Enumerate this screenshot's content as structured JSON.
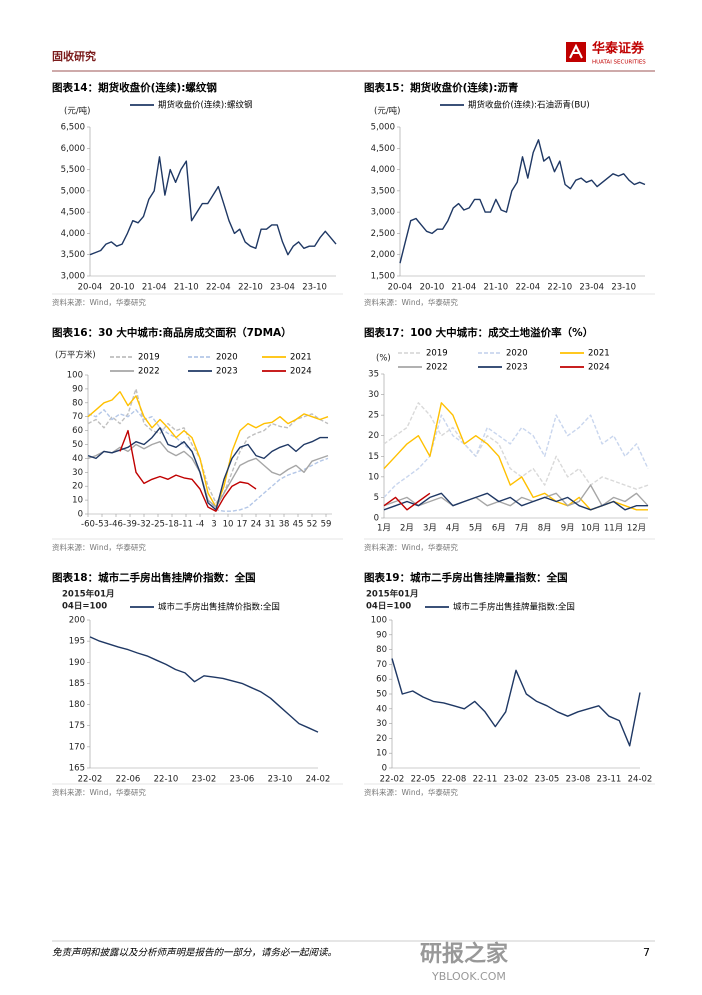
{
  "header": {
    "section": "固收研究",
    "logo_cn": "华泰证券",
    "logo_en": "HUATAI SECURITIES"
  },
  "chart_data": [
    {
      "type": "line",
      "title": "图表14：期货收盘价(连续):螺纹钢",
      "unit": "(元/吨)",
      "categories": [
        "20-04",
        null,
        null,
        null,
        null,
        null,
        "20-10",
        null,
        null,
        null,
        null,
        null,
        "21-04",
        null,
        null,
        null,
        null,
        null,
        "21-10",
        null,
        null,
        null,
        null,
        null,
        "22-04",
        null,
        null,
        null,
        null,
        null,
        "22-10",
        null,
        null,
        null,
        null,
        null,
        "23-04",
        null,
        null,
        null,
        null,
        null,
        "23-10",
        null,
        null,
        null,
        null
      ],
      "series": [
        {
          "name": "期货收盘价(连续):螺纹钢",
          "color": "#1f3864",
          "values": [
            3500,
            3550,
            3600,
            3750,
            3800,
            3700,
            3750,
            4000,
            4300,
            4250,
            4400,
            4800,
            5000,
            5800,
            4900,
            5500,
            5200,
            5500,
            5700,
            4300,
            4500,
            4700,
            4700,
            4900,
            5100,
            4700,
            4300,
            4000,
            4100,
            3800,
            3700,
            3650,
            4100,
            4100,
            4200,
            4200,
            3800,
            3500,
            3700,
            3800,
            3650,
            3700,
            3700,
            3900,
            4050,
            3900,
            3750
          ]
        }
      ],
      "ylim": [
        3000,
        6500
      ],
      "yticks": [
        {
          "value": 3000,
          "label": "3,000"
        },
        {
          "value": 3500,
          "label": "3,500"
        },
        {
          "value": 4000,
          "label": "4,000"
        },
        {
          "value": 4500,
          "label": "4,500"
        },
        {
          "value": 5000,
          "label": "5,000"
        },
        {
          "value": 5500,
          "label": "5,500"
        },
        {
          "value": 6000,
          "label": "6,000"
        },
        {
          "value": 6500,
          "label": "6,500"
        }
      ],
      "grid": false,
      "source": "资料来源：Wind，华泰研究"
    },
    {
      "type": "line",
      "title": "图表15：期货收盘价(连续):沥青",
      "unit": "(元/吨)",
      "categories": [
        "20-04",
        null,
        null,
        null,
        null,
        null,
        "20-10",
        null,
        null,
        null,
        null,
        null,
        "21-04",
        null,
        null,
        null,
        null,
        null,
        "21-10",
        null,
        null,
        null,
        null,
        null,
        "22-04",
        null,
        null,
        null,
        null,
        null,
        "22-10",
        null,
        null,
        null,
        null,
        null,
        "23-04",
        null,
        null,
        null,
        null,
        null,
        "23-10",
        null,
        null,
        null,
        null
      ],
      "series": [
        {
          "name": "期货收盘价(连续):石油沥青(BU)",
          "color": "#1f3864",
          "values": [
            1800,
            2300,
            2800,
            2850,
            2700,
            2550,
            2500,
            2600,
            2600,
            2800,
            3100,
            3200,
            3050,
            3100,
            3300,
            3300,
            3000,
            3000,
            3300,
            3050,
            3000,
            3500,
            3700,
            4300,
            3800,
            4400,
            4700,
            4200,
            4300,
            3950,
            4200,
            3650,
            3550,
            3750,
            3800,
            3700,
            3750,
            3600,
            3700,
            3800,
            3900,
            3850,
            3900,
            3750,
            3650,
            3700,
            3650
          ]
        }
      ],
      "ylim": [
        1500,
        5000
      ],
      "yticks": [
        {
          "value": 1500,
          "label": "1,500"
        },
        {
          "value": 2000,
          "label": "2,000"
        },
        {
          "value": 2500,
          "label": "2,500"
        },
        {
          "value": 3000,
          "label": "3,000"
        },
        {
          "value": 3500,
          "label": "3,500"
        },
        {
          "value": 4000,
          "label": "4,000"
        },
        {
          "value": 4500,
          "label": "4,500"
        },
        {
          "value": 5000,
          "label": "5,000"
        }
      ],
      "grid": false,
      "source": "资料来源：Wind，华泰研究"
    },
    {
      "type": "line",
      "title": "图表16：30 大中城市:商品房成交面积（7DMA）",
      "unit": "(万平方米)",
      "x": [
        -60,
        -56,
        -52,
        -48,
        -44,
        -40,
        -36,
        -32,
        -28,
        -24,
        -20,
        -16,
        -12,
        -8,
        -4,
        0,
        4,
        8,
        12,
        16,
        20,
        24,
        28,
        32,
        36,
        40,
        44,
        48,
        52,
        56,
        60
      ],
      "xlim": [
        -60,
        62
      ],
      "xticks": [
        -60,
        -53,
        -46,
        -39,
        -32,
        -25,
        -18,
        -11,
        -4,
        3,
        10,
        17,
        24,
        31,
        38,
        45,
        52,
        59
      ],
      "series": [
        {
          "name": "2019",
          "color": "#bfbfbf",
          "dashed": true,
          "values": [
            65,
            68,
            62,
            70,
            65,
            72,
            90,
            65,
            60,
            58,
            65,
            60,
            62,
            50,
            40,
            20,
            8,
            15,
            30,
            45,
            55,
            58,
            60,
            65,
            63,
            62,
            68,
            70,
            72,
            68,
            65
          ]
        },
        {
          "name": "2020",
          "color": "#b4c7e7",
          "dashed": true,
          "values": [
            72,
            70,
            75,
            68,
            72,
            70,
            75,
            68,
            70,
            62,
            58,
            55,
            50,
            45,
            30,
            10,
            3,
            2,
            2,
            3,
            5,
            10,
            15,
            20,
            25,
            28,
            30,
            32,
            35,
            38,
            40
          ]
        },
        {
          "name": "2021",
          "color": "#ffc000",
          "dashed": false,
          "values": [
            70,
            75,
            80,
            82,
            88,
            78,
            85,
            70,
            62,
            68,
            62,
            55,
            60,
            55,
            40,
            15,
            5,
            20,
            45,
            60,
            65,
            62,
            65,
            66,
            70,
            65,
            68,
            72,
            70,
            68,
            70
          ]
        },
        {
          "name": "2022",
          "color": "#a6a6a6",
          "dashed": false,
          "values": [
            40,
            42,
            45,
            44,
            48,
            45,
            50,
            47,
            50,
            52,
            45,
            42,
            45,
            40,
            30,
            10,
            5,
            15,
            25,
            35,
            38,
            40,
            35,
            30,
            28,
            32,
            35,
            30,
            38,
            40,
            42
          ]
        },
        {
          "name": "2023",
          "color": "#1f3864",
          "dashed": false,
          "values": [
            42,
            40,
            45,
            44,
            46,
            48,
            52,
            50,
            55,
            62,
            50,
            48,
            52,
            45,
            30,
            8,
            3,
            25,
            40,
            48,
            50,
            42,
            40,
            45,
            48,
            50,
            45,
            50,
            52,
            55,
            55
          ]
        },
        {
          "name": "2024",
          "color": "#c00000",
          "dashed": false,
          "values": [
            null,
            null,
            null,
            null,
            45,
            60,
            30,
            22,
            25,
            27,
            25,
            28,
            26,
            25,
            18,
            5,
            2,
            12,
            20,
            23,
            22,
            18,
            null,
            null,
            null,
            null,
            null,
            null,
            null,
            null,
            null
          ]
        }
      ],
      "ylim": [
        0,
        100
      ],
      "yticks": [
        0,
        10,
        20,
        30,
        40,
        50,
        60,
        70,
        80,
        90,
        100
      ],
      "grid": false,
      "source": "资料来源：Wind，华泰研究"
    },
    {
      "type": "line",
      "title": "图表17：100 大中城市：成交土地溢价率（%）",
      "unit": "(%)",
      "categories": [
        "1月",
        null,
        "2月",
        null,
        "3月",
        null,
        "4月",
        null,
        "5月",
        null,
        "6月",
        null,
        "7月",
        null,
        "8月",
        null,
        "9月",
        null,
        "10月",
        null,
        "11月",
        null,
        "12月",
        null
      ],
      "series": [
        {
          "name": "2019",
          "color": "#d9d9d9",
          "dashed": true,
          "values": [
            18,
            20,
            22,
            28,
            25,
            20,
            22,
            18,
            15,
            20,
            18,
            12,
            10,
            12,
            8,
            15,
            10,
            12,
            8,
            10,
            9,
            8,
            7,
            8
          ]
        },
        {
          "name": "2020",
          "color": "#c9d6ee",
          "dashed": true,
          "values": [
            5,
            8,
            10,
            12,
            15,
            25,
            20,
            18,
            15,
            22,
            20,
            18,
            22,
            20,
            15,
            25,
            20,
            22,
            25,
            18,
            20,
            15,
            18,
            12
          ]
        },
        {
          "name": "2021",
          "color": "#ffc000",
          "dashed": false,
          "values": [
            12,
            15,
            18,
            20,
            15,
            28,
            25,
            18,
            20,
            18,
            15,
            8,
            10,
            5,
            6,
            4,
            3,
            5,
            2,
            3,
            4,
            3,
            2,
            2
          ]
        },
        {
          "name": "2022",
          "color": "#a6a6a6",
          "dashed": false,
          "values": [
            3,
            4,
            5,
            3,
            4,
            5,
            3,
            4,
            5,
            3,
            4,
            3,
            5,
            4,
            5,
            6,
            3,
            4,
            8,
            3,
            5,
            4,
            6,
            3
          ]
        },
        {
          "name": "2023",
          "color": "#1f3864",
          "dashed": false,
          "values": [
            2,
            3,
            4,
            3,
            5,
            6,
            3,
            4,
            5,
            6,
            4,
            5,
            3,
            4,
            5,
            4,
            5,
            3,
            2,
            3,
            4,
            2,
            3,
            3
          ]
        },
        {
          "name": "2024",
          "color": "#c00000",
          "dashed": false,
          "values": [
            3,
            5,
            2,
            4,
            6,
            null,
            null,
            null,
            null,
            null,
            null,
            null,
            null,
            null,
            null,
            null,
            null,
            null,
            null,
            null,
            null,
            null,
            null,
            null
          ]
        }
      ],
      "ylim": [
        0,
        35
      ],
      "yticks": [
        0,
        5,
        10,
        15,
        20,
        25,
        30,
        35
      ],
      "grid": false,
      "source": "资料来源：Wind，华泰研究"
    },
    {
      "type": "line",
      "title": "图表18：城市二手房出售挂牌价指数：全国",
      "unit": [
        "2015年01月",
        "04日=100"
      ],
      "categories": [
        "22-02",
        null,
        null,
        null,
        "22-06",
        null,
        null,
        null,
        "22-10",
        null,
        null,
        null,
        "23-02",
        null,
        null,
        null,
        "23-06",
        null,
        null,
        null,
        "23-10",
        null,
        null,
        null,
        "24-02"
      ],
      "series": [
        {
          "name": "城市二手房出售挂牌价指数:全国",
          "color": "#1f3864",
          "values": [
            196,
            195,
            194.3,
            193.6,
            193,
            192.2,
            191.5,
            190.5,
            189.5,
            188.3,
            187.5,
            185.4,
            186.8,
            186.5,
            186.2,
            185.6,
            185,
            184,
            183,
            181.5,
            179.5,
            177.5,
            175.5,
            174.5,
            173.5
          ]
        }
      ],
      "ylim": [
        165,
        200
      ],
      "yticks": [
        165,
        170,
        175,
        180,
        185,
        190,
        195,
        200
      ],
      "grid": false,
      "source": "资料来源：Wind，华泰研究"
    },
    {
      "type": "line",
      "title": "图表19：城市二手房出售挂牌量指数：全国",
      "unit": [
        "2015年01月",
        "04日=100"
      ],
      "categories": [
        "22-02",
        null,
        null,
        "22-05",
        null,
        null,
        "22-08",
        null,
        null,
        "22-11",
        null,
        null,
        "23-02",
        null,
        null,
        "23-05",
        null,
        null,
        "23-08",
        null,
        null,
        "23-11",
        null,
        null,
        "24-02"
      ],
      "series": [
        {
          "name": "城市二手房出售挂牌量指数:全国",
          "color": "#1f3864",
          "values": [
            74,
            50,
            52,
            48,
            45,
            44,
            42,
            40,
            45,
            38,
            28,
            38,
            66,
            50,
            45,
            42,
            38,
            35,
            38,
            40,
            42,
            35,
            32,
            15,
            51
          ]
        }
      ],
      "ylim": [
        0,
        100
      ],
      "yticks": [
        0,
        10,
        20,
        30,
        40,
        50,
        60,
        70,
        80,
        90,
        100
      ],
      "grid": false,
      "source": "资料来源：Wind，华泰研究"
    }
  ],
  "footer": {
    "disclaimer": "免责声明和披露以及分析师声明是报告的一部分，请务必一起阅读。",
    "page": 7
  },
  "watermark": {
    "cn": "研报之家",
    "en": "YBLOOK.COM"
  }
}
